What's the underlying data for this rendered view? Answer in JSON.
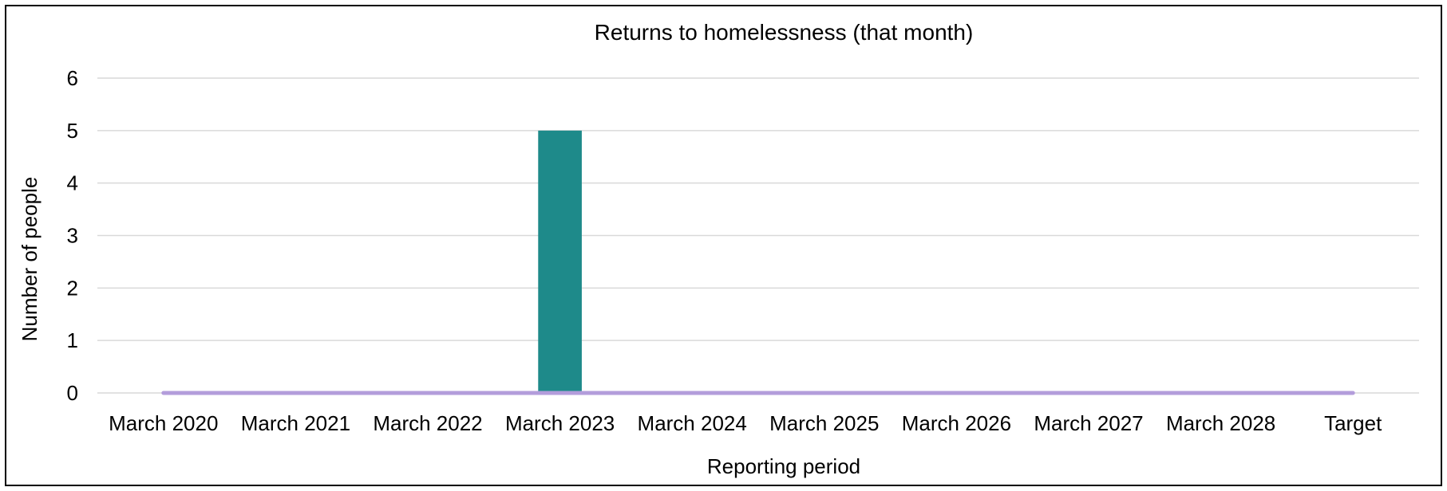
{
  "chart_data": {
    "type": "bar",
    "title": "Returns to homelessness (that month)",
    "xlabel": "Reporting period",
    "ylabel": "Number of people",
    "categories": [
      "March 2020",
      "March 2021",
      "March 2022",
      "March 2023",
      "March 2024",
      "March 2025",
      "March 2026",
      "March 2027",
      "March 2028",
      "Target"
    ],
    "series": [
      {
        "type": "bar",
        "values": [
          0,
          0,
          0,
          5,
          0,
          0,
          0,
          0,
          0,
          0
        ],
        "color": "#1e8a8a"
      },
      {
        "type": "line",
        "values": [
          0,
          0,
          0,
          0,
          0,
          0,
          0,
          0,
          0,
          0
        ],
        "color": "#b39ddb"
      }
    ],
    "ylim": [
      0,
      6
    ],
    "yticks": [
      0,
      1,
      2,
      3,
      4,
      5,
      6
    ],
    "grid": true,
    "legend": "none"
  }
}
